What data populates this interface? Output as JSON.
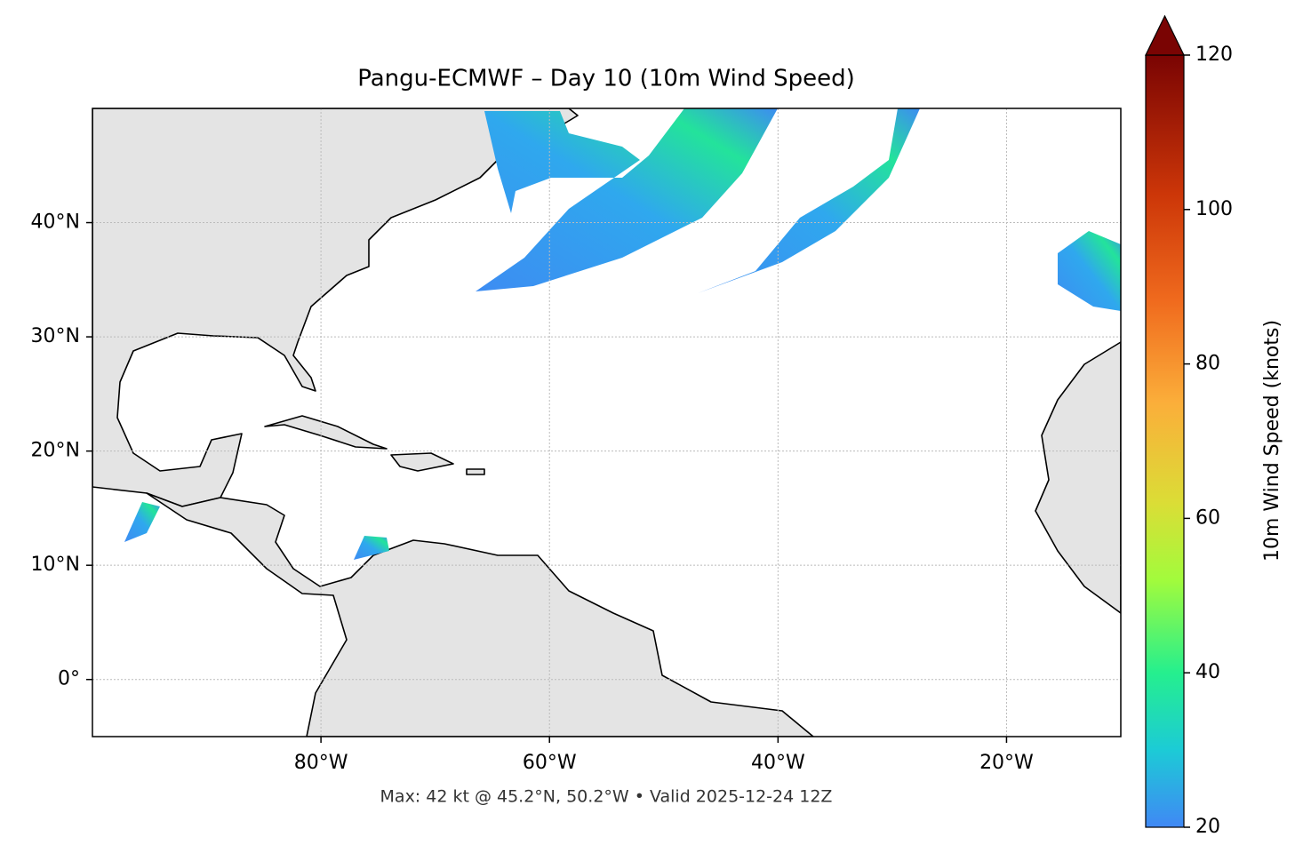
{
  "chart_data": {
    "type": "map",
    "title": "Pangu-ECMWF – Day 10 (10m Wind Speed)",
    "caption": "Max: 42 kt @ 45.2°N, 50.2°W • Valid 2025-12-24 12Z",
    "xlim": [
      -100,
      -10
    ],
    "ylim": [
      -5,
      50
    ],
    "xticks": [
      {
        "value": -80,
        "label": "80°W"
      },
      {
        "value": -60,
        "label": "60°W"
      },
      {
        "value": -40,
        "label": "40°W"
      },
      {
        "value": -20,
        "label": "20°W"
      }
    ],
    "yticks": [
      {
        "value": 0,
        "label": "0°"
      },
      {
        "value": 10,
        "label": "10°N"
      },
      {
        "value": 20,
        "label": "20°N"
      },
      {
        "value": 30,
        "label": "30°N"
      },
      {
        "value": 40,
        "label": "40°N"
      }
    ],
    "grid": true,
    "colorbar": {
      "label": "10m Wind Speed (knots)",
      "lim": [
        20,
        120
      ],
      "ticks": [
        20,
        40,
        60,
        80,
        100,
        120
      ],
      "extend": "max"
    }
  }
}
